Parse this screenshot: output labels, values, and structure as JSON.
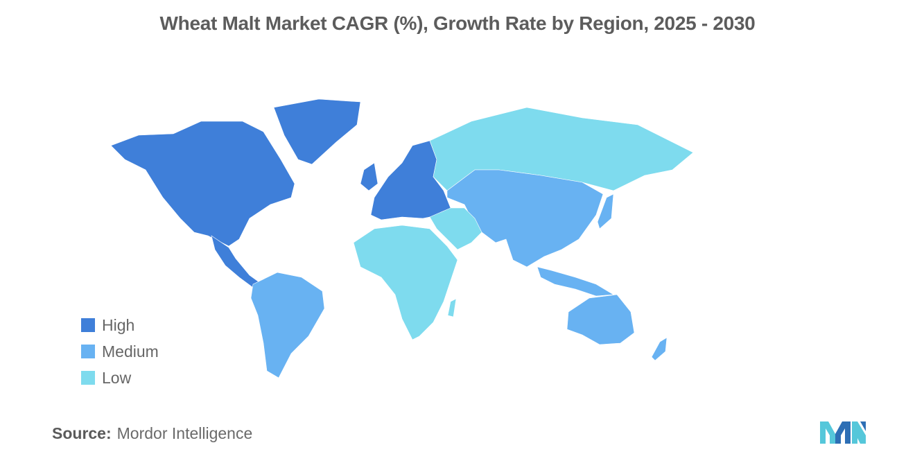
{
  "title": "Wheat Malt Market CAGR (%), Growth Rate by Region, 2025 - 2030",
  "legend": [
    {
      "label": "High",
      "color": "#3f7fd9"
    },
    {
      "label": "Medium",
      "color": "#68b2f2"
    },
    {
      "label": "Low",
      "color": "#7edbee"
    }
  ],
  "regions": {
    "north_america": "High",
    "europe": "High",
    "south_america": "Medium",
    "asia_pacific": "Medium",
    "russia_central_asia": "Low",
    "middle_east_africa": "Low"
  },
  "colors": {
    "no_data": "#a6a6a6",
    "logo_light": "#55c7da",
    "logo_dark": "#2e6fb5"
  },
  "source": {
    "label": "Source:",
    "text": "Mordor Intelligence"
  }
}
